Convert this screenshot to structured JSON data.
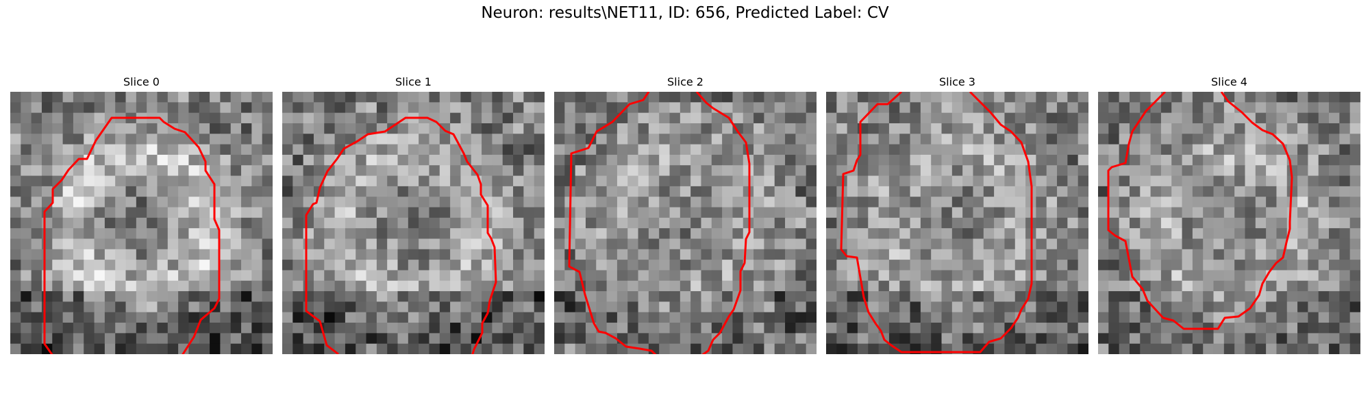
{
  "figure": {
    "title": "Neuron: results\\NET11, ID: 656, Predicted Label: CV",
    "contour_color": "#ff0000"
  },
  "slices": [
    {
      "label": "Slice 0",
      "seed": 11,
      "ring": 0.85,
      "dark_band": 1.0
    },
    {
      "label": "Slice 1",
      "seed": 23,
      "ring": 0.6,
      "dark_band": 1.1
    },
    {
      "label": "Slice 2",
      "seed": 37,
      "ring": 0.3,
      "dark_band": 0.6
    },
    {
      "label": "Slice 3",
      "seed": 41,
      "ring": 0.35,
      "dark_band": 0.8
    },
    {
      "label": "Slice 4",
      "seed": 53,
      "ring": 0.45,
      "dark_band": 0.6
    }
  ]
}
